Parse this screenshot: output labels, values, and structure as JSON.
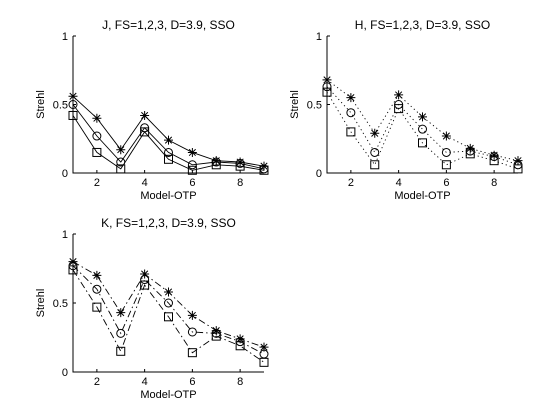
{
  "chart_data": [
    {
      "type": "line",
      "title": "J, FS=1,2,3, D=3.9, SSO",
      "xlabel": "Model-OTP",
      "ylabel": "Strehl",
      "xlim": [
        1,
        9
      ],
      "ylim": [
        0,
        1
      ],
      "xticks": [
        "2",
        "4",
        "6",
        "8"
      ],
      "yticks": [
        "0",
        "0.5",
        "1"
      ],
      "line_style": "solid",
      "x": [
        1,
        2,
        3,
        4,
        5,
        6,
        7,
        8,
        9
      ],
      "series": [
        {
          "marker": "star",
          "values": [
            0.56,
            0.4,
            0.17,
            0.42,
            0.24,
            0.15,
            0.09,
            0.08,
            0.05
          ]
        },
        {
          "marker": "circle",
          "values": [
            0.5,
            0.27,
            0.08,
            0.33,
            0.15,
            0.06,
            0.08,
            0.07,
            0.03
          ]
        },
        {
          "marker": "square",
          "values": [
            0.42,
            0.15,
            0.03,
            0.3,
            0.1,
            0.02,
            0.06,
            0.05,
            0.02
          ]
        }
      ]
    },
    {
      "type": "line",
      "title": "H, FS=1,2,3, D=3.9, SSO",
      "xlabel": "Model-OTP",
      "ylabel": "Strehl",
      "xlim": [
        1,
        9
      ],
      "ylim": [
        0,
        1
      ],
      "xticks": [
        "2",
        "4",
        "6",
        "8"
      ],
      "yticks": [
        "0",
        "0.5",
        "1"
      ],
      "line_style": "dotted",
      "x": [
        1,
        2,
        3,
        4,
        5,
        6,
        7,
        8,
        9
      ],
      "series": [
        {
          "marker": "star",
          "values": [
            0.68,
            0.55,
            0.29,
            0.57,
            0.41,
            0.27,
            0.18,
            0.13,
            0.09
          ]
        },
        {
          "marker": "circle",
          "values": [
            0.63,
            0.44,
            0.15,
            0.5,
            0.32,
            0.15,
            0.16,
            0.12,
            0.06
          ]
        },
        {
          "marker": "square",
          "values": [
            0.59,
            0.3,
            0.06,
            0.47,
            0.22,
            0.06,
            0.14,
            0.09,
            0.03
          ]
        }
      ]
    },
    {
      "type": "line",
      "title": "K, FS=1,2,3, D=3.9, SSO",
      "xlabel": "Model-OTP",
      "ylabel": "Strehl",
      "xlim": [
        1,
        9
      ],
      "ylim": [
        0,
        1
      ],
      "xticks": [
        "2",
        "4",
        "6",
        "8"
      ],
      "yticks": [
        "0",
        "0.5",
        "1"
      ],
      "line_style": "dashdot",
      "x": [
        1,
        2,
        3,
        4,
        5,
        6,
        7,
        8,
        9
      ],
      "series": [
        {
          "marker": "star",
          "values": [
            0.8,
            0.7,
            0.43,
            0.71,
            0.58,
            0.41,
            0.3,
            0.24,
            0.18
          ]
        },
        {
          "marker": "circle",
          "values": [
            0.77,
            0.6,
            0.28,
            0.67,
            0.5,
            0.29,
            0.28,
            0.22,
            0.13
          ]
        },
        {
          "marker": "square",
          "values": [
            0.74,
            0.47,
            0.15,
            0.63,
            0.4,
            0.14,
            0.26,
            0.19,
            0.07
          ]
        }
      ]
    }
  ]
}
